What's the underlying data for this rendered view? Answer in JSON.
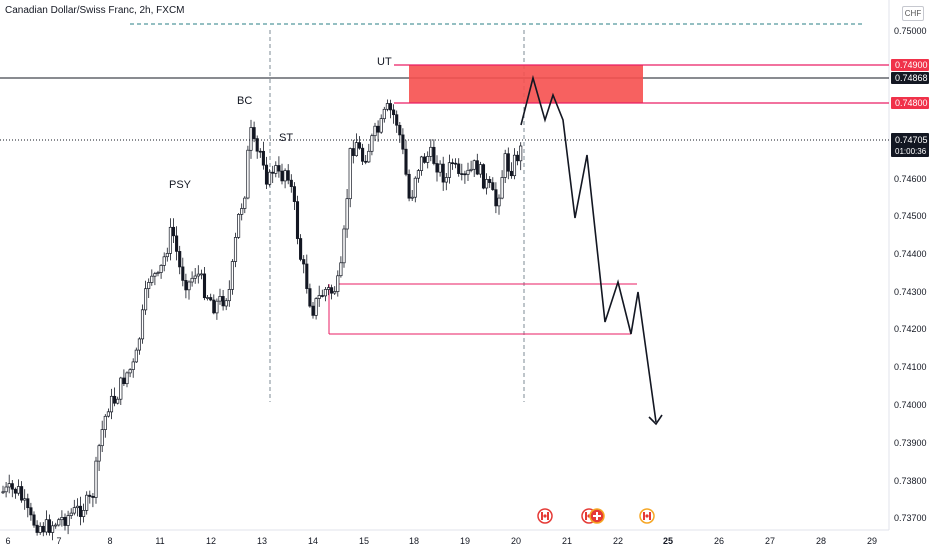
{
  "header": {
    "title": "Canadian Dollar/Swiss Franc, 2h, FXCM",
    "currency": "CHF"
  },
  "colors": {
    "up": "#26a69a",
    "down": "#ef5350",
    "candle": "#131722",
    "zone_fill": "#f6504f",
    "zone_line": "#e91e63",
    "grid_dash": "#2a7f86",
    "price_badge": "#131722",
    "level_badge": "#f0324a"
  },
  "chart_data": {
    "type": "candlestick",
    "y_axis": {
      "ticks": [
        "0.75000",
        "0.74600",
        "0.74500",
        "0.74400",
        "0.74300",
        "0.74200",
        "0.74100",
        "0.74000",
        "0.73900",
        "0.73800",
        "0.73700"
      ],
      "range": [
        0.7365,
        0.7514
      ]
    },
    "x_axis": {
      "ticks": [
        "6",
        "7",
        "8",
        "11",
        "12",
        "13",
        "14",
        "15",
        "18",
        "19",
        "20",
        "21",
        "22",
        "25",
        "26",
        "27",
        "28",
        "29"
      ],
      "bold_tick": "25"
    },
    "price_labels": {
      "upper_zone_top": "0.74900",
      "last_close": "0.74868",
      "upper_zone_bottom": "0.74800",
      "current": "0.74705",
      "countdown": "01:00:36"
    },
    "annotations": [
      "PSY",
      "BC",
      "ST",
      "UT"
    ],
    "zones": [
      {
        "name": "supply",
        "from": 0.748,
        "to": 0.749,
        "filled": true
      },
      {
        "name": "demand",
        "from": 0.7418,
        "to": 0.7432,
        "filled": false
      }
    ],
    "projected_path": [
      0.7475,
      0.7487,
      0.7477,
      0.7482,
      0.7478,
      0.745,
      0.7467,
      0.7422,
      0.7432,
      0.742,
      0.7432,
      0.7395
    ],
    "events": [
      "ca-flag",
      "ca-flag",
      "ch-flag",
      "ca-flag"
    ]
  }
}
